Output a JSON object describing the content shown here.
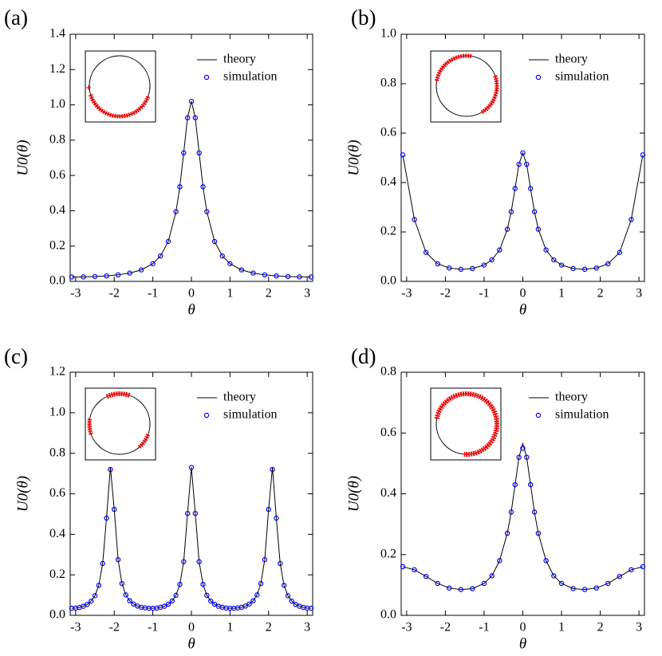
{
  "chart_data": [
    {
      "type": "line",
      "label": "(a)",
      "xlabel": "θ",
      "ylabel": "U0(θ)",
      "legend": "upper right",
      "x": [
        -3.1,
        -2.8,
        -2.5,
        -2.2,
        -1.9,
        -1.6,
        -1.3,
        -1.0,
        -0.8,
        -0.6,
        -0.4,
        -0.3,
        -0.2,
        -0.1,
        0,
        0.1,
        0.2,
        0.3,
        0.4,
        0.6,
        0.8,
        1.0,
        1.3,
        1.6,
        1.9,
        2.2,
        2.5,
        2.8,
        3.1
      ],
      "series": [
        {
          "name": "theory",
          "marker": "line",
          "color": "#000000",
          "values": [
            0.0248,
            0.0256,
            0.0275,
            0.031,
            0.037,
            0.047,
            0.065,
            0.1,
            0.144,
            0.226,
            0.395,
            0.536,
            0.728,
            0.927,
            1.02,
            0.927,
            0.728,
            0.536,
            0.395,
            0.226,
            0.144,
            0.1,
            0.065,
            0.047,
            0.037,
            0.031,
            0.0275,
            0.0256,
            0.0248
          ]
        },
        {
          "name": "simulation",
          "marker": "circle",
          "color": "#0000ff",
          "values": [
            0.0248,
            0.0256,
            0.0275,
            0.031,
            0.037,
            0.047,
            0.065,
            0.1,
            0.144,
            0.226,
            0.395,
            0.536,
            0.728,
            0.927,
            1.02,
            0.927,
            0.728,
            0.536,
            0.395,
            0.226,
            0.144,
            0.1,
            0.065,
            0.047,
            0.037,
            0.031,
            0.0275,
            0.0256,
            0.0248
          ]
        }
      ],
      "xlim": [
        -3.14159,
        3.14159
      ],
      "ylim": [
        0,
        1.4
      ],
      "xticks": [
        -3,
        -2,
        -1,
        0,
        1,
        2,
        3
      ],
      "yticks": [
        {
          "value": 0,
          "label": "0.0"
        },
        {
          "value": 0.2,
          "label": "0.2"
        },
        {
          "value": 0.4,
          "label": "0.4"
        },
        {
          "value": 0.6,
          "label": "0.6"
        },
        {
          "value": 0.8,
          "label": "0.8"
        },
        {
          "value": 1.0,
          "label": "1.0"
        },
        {
          "value": 1.2,
          "label": "1.2"
        },
        {
          "value": 1.4,
          "label": "1.4"
        }
      ]
    },
    {
      "type": "line",
      "label": "(b)",
      "xlabel": "θ",
      "ylabel": "U0(θ)",
      "legend": "upper right",
      "x": [
        -3.1,
        -2.8,
        -2.5,
        -2.2,
        -1.9,
        -1.6,
        -1.3,
        -1.0,
        -0.8,
        -0.6,
        -0.4,
        -0.3,
        -0.2,
        -0.1,
        0,
        0.1,
        0.2,
        0.3,
        0.4,
        0.6,
        0.8,
        1.0,
        1.3,
        1.6,
        1.9,
        2.2,
        2.5,
        2.8,
        3.1
      ],
      "series": [
        {
          "name": "theory",
          "marker": "line",
          "color": "#000000",
          "values": [
            0.512,
            0.25,
            0.117,
            0.071,
            0.054,
            0.0488,
            0.052,
            0.066,
            0.087,
            0.127,
            0.211,
            0.282,
            0.376,
            0.474,
            0.52,
            0.474,
            0.376,
            0.282,
            0.211,
            0.127,
            0.087,
            0.066,
            0.052,
            0.0488,
            0.054,
            0.071,
            0.117,
            0.25,
            0.512
          ]
        },
        {
          "name": "simulation",
          "marker": "circle",
          "color": "#0000ff",
          "values": [
            0.512,
            0.25,
            0.117,
            0.071,
            0.054,
            0.0488,
            0.052,
            0.066,
            0.087,
            0.127,
            0.211,
            0.282,
            0.376,
            0.474,
            0.52,
            0.474,
            0.376,
            0.282,
            0.211,
            0.127,
            0.087,
            0.066,
            0.052,
            0.0488,
            0.054,
            0.071,
            0.117,
            0.25,
            0.512
          ]
        }
      ],
      "xlim": [
        -3.14159,
        3.14159
      ],
      "ylim": [
        0,
        1.0
      ],
      "xticks": [
        -3,
        -2,
        -1,
        0,
        1,
        2,
        3
      ],
      "yticks": [
        {
          "value": 0,
          "label": "0.0"
        },
        {
          "value": 0.2,
          "label": "0.2"
        },
        {
          "value": 0.4,
          "label": "0.4"
        },
        {
          "value": 0.6,
          "label": "0.6"
        },
        {
          "value": 0.8,
          "label": "0.8"
        },
        {
          "value": 1.0,
          "label": "1.0"
        }
      ]
    },
    {
      "type": "line",
      "label": "(c)",
      "xlabel": "θ",
      "ylabel": "U0(θ)",
      "legend": "upper right",
      "x": [
        -3.1,
        -3.0,
        -2.9,
        -2.8,
        -2.7,
        -2.6,
        -2.5,
        -2.4,
        -2.3,
        -2.2,
        -2.1,
        -2.0,
        -1.9,
        -1.8,
        -1.7,
        -1.6,
        -1.5,
        -1.4,
        -1.3,
        -1.2,
        -1.1,
        -1.0,
        -0.9,
        -0.8,
        -0.7,
        -0.6,
        -0.5,
        -0.4,
        -0.3,
        -0.2,
        -0.1,
        0,
        0.1,
        0.2,
        0.3,
        0.4,
        0.5,
        0.6,
        0.7,
        0.8,
        0.9,
        1.0,
        1.1,
        1.2,
        1.3,
        1.4,
        1.5,
        1.6,
        1.7,
        1.8,
        1.9,
        2.0,
        2.1,
        2.2,
        2.3,
        2.4,
        2.5,
        2.6,
        2.7,
        2.8,
        2.9,
        3.0,
        3.1
      ],
      "series": [
        {
          "name": "theory",
          "marker": "line",
          "color": "#000000",
          "values": [
            0.035,
            0.036,
            0.039,
            0.045,
            0.054,
            0.07,
            0.097,
            0.148,
            0.256,
            0.48,
            0.731,
            0.523,
            0.275,
            0.157,
            0.101,
            0.072,
            0.056,
            0.046,
            0.04,
            0.037,
            0.035,
            0.035,
            0.036,
            0.04,
            0.045,
            0.055,
            0.071,
            0.099,
            0.153,
            0.265,
            0.503,
            0.731,
            0.503,
            0.265,
            0.153,
            0.099,
            0.071,
            0.055,
            0.045,
            0.04,
            0.036,
            0.035,
            0.035,
            0.037,
            0.04,
            0.046,
            0.056,
            0.072,
            0.101,
            0.157,
            0.275,
            0.523,
            0.731,
            0.48,
            0.256,
            0.148,
            0.097,
            0.07,
            0.054,
            0.045,
            0.039,
            0.036,
            0.035
          ]
        },
        {
          "name": "simulation",
          "marker": "circle",
          "color": "#0000ff",
          "values": [
            0.035,
            0.036,
            0.039,
            0.045,
            0.054,
            0.07,
            0.097,
            0.148,
            0.256,
            0.48,
            0.72,
            0.523,
            0.275,
            0.157,
            0.101,
            0.072,
            0.056,
            0.046,
            0.04,
            0.037,
            0.035,
            0.035,
            0.036,
            0.04,
            0.045,
            0.055,
            0.071,
            0.099,
            0.153,
            0.265,
            0.503,
            0.73,
            0.503,
            0.265,
            0.153,
            0.099,
            0.071,
            0.055,
            0.045,
            0.04,
            0.036,
            0.035,
            0.035,
            0.037,
            0.04,
            0.046,
            0.056,
            0.072,
            0.101,
            0.157,
            0.275,
            0.523,
            0.72,
            0.48,
            0.256,
            0.148,
            0.097,
            0.07,
            0.054,
            0.045,
            0.039,
            0.036,
            0.035
          ]
        }
      ],
      "xlim": [
        -3.14159,
        3.14159
      ],
      "ylim": [
        0,
        1.2
      ],
      "xticks": [
        -3,
        -2,
        -1,
        0,
        1,
        2,
        3
      ],
      "yticks": [
        {
          "value": 0,
          "label": "0.0"
        },
        {
          "value": 0.2,
          "label": "0.2"
        },
        {
          "value": 0.4,
          "label": "0.4"
        },
        {
          "value": 0.6,
          "label": "0.6"
        },
        {
          "value": 0.8,
          "label": "0.8"
        },
        {
          "value": 1.0,
          "label": "1.0"
        },
        {
          "value": 1.2,
          "label": "1.2"
        }
      ]
    },
    {
      "type": "line",
      "label": "(d)",
      "xlabel": "θ",
      "ylabel": "U0(θ)",
      "legend": "upper right",
      "x": [
        -3.1,
        -2.8,
        -2.5,
        -2.2,
        -1.9,
        -1.6,
        -1.3,
        -1.0,
        -0.8,
        -0.6,
        -0.4,
        -0.3,
        -0.2,
        -0.1,
        0,
        0.1,
        0.2,
        0.3,
        0.4,
        0.6,
        0.8,
        1.0,
        1.3,
        1.6,
        1.9,
        2.2,
        2.5,
        2.8,
        3.1
      ],
      "series": [
        {
          "name": "theory",
          "marker": "line",
          "color": "#000000",
          "values": [
            0.16,
            0.15,
            0.128,
            0.105,
            0.09,
            0.085,
            0.088,
            0.105,
            0.13,
            0.18,
            0.27,
            0.34,
            0.43,
            0.52,
            0.565,
            0.52,
            0.43,
            0.34,
            0.27,
            0.18,
            0.13,
            0.105,
            0.088,
            0.085,
            0.09,
            0.105,
            0.128,
            0.15,
            0.16
          ]
        },
        {
          "name": "simulation",
          "marker": "circle",
          "color": "#0000ff",
          "values": [
            0.16,
            0.15,
            0.128,
            0.105,
            0.09,
            0.085,
            0.088,
            0.105,
            0.13,
            0.18,
            0.27,
            0.34,
            0.43,
            0.52,
            0.55,
            0.52,
            0.43,
            0.34,
            0.27,
            0.18,
            0.13,
            0.105,
            0.088,
            0.085,
            0.09,
            0.105,
            0.128,
            0.15,
            0.16
          ]
        }
      ],
      "xlim": [
        -3.14159,
        3.14159
      ],
      "ylim": [
        0,
        0.8
      ],
      "xticks": [
        -3,
        -2,
        -1,
        0,
        1,
        2,
        3
      ],
      "yticks": [
        {
          "value": 0,
          "label": "0.0"
        },
        {
          "value": 0.2,
          "label": "0.2"
        },
        {
          "value": 0.4,
          "label": "0.4"
        },
        {
          "value": 0.6,
          "label": "0.6"
        },
        {
          "value": 0.8,
          "label": "0.8"
        }
      ]
    }
  ]
}
